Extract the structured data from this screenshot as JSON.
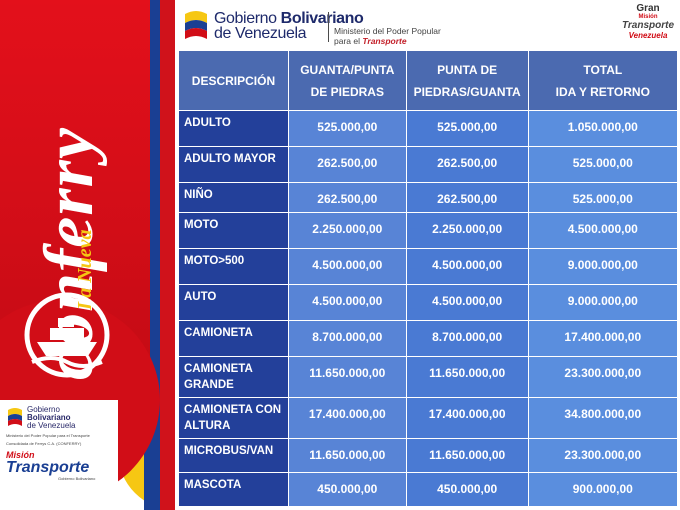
{
  "header": {
    "gov_line1_prefix": "Gobierno ",
    "gov_line1_bold": "Bolivariano",
    "gov_line2": "de Venezuela",
    "ministry_line1": "Ministerio del Poder Popular",
    "ministry_line2_prefix": "para el ",
    "ministry_line2_highlight": "Transporte",
    "gran_line1": "Gran",
    "gran_line2": "Misión",
    "gran_line3": "Transporte",
    "gran_line4": "Venezuela"
  },
  "branding": {
    "la_nueva": "La Nueva",
    "conferry": "conferry"
  },
  "footer": {
    "gov_line1": "Gobierno",
    "gov_line2": "Bolivariano",
    "gov_line3": "de Venezuela",
    "ministry_small": "Ministerio del Poder Popular para el Transporte",
    "consorcio": "Consolidada de Ferrys C.A. (CONFERRY)",
    "mision": "Misión",
    "transporte": "Transporte",
    "small_tag": "Gobierno Bolivariano"
  },
  "table": {
    "headers": {
      "desc": "DESCRIPCIÓN",
      "col1_line1": "GUANTA/PUNTA",
      "col1_line2": "DE PIEDRAS",
      "col2_line1": "PUNTA DE",
      "col2_line2": "PIEDRAS/GUANTA",
      "col3_line1": "TOTAL",
      "col3_line2": "IDA Y RETORNO"
    },
    "rows": [
      {
        "desc": "ADULTO",
        "g": "525.000,00",
        "p": "525.000,00",
        "t": "1.050.000,00"
      },
      {
        "desc": "ADULTO MAYOR",
        "g": "262.500,00",
        "p": "262.500,00",
        "t": "525.000,00"
      },
      {
        "desc": "NIÑO",
        "g": "262.500,00",
        "p": "262.500,00",
        "t": "525.000,00"
      },
      {
        "desc": "MOTO",
        "g": "2.250.000,00",
        "p": "2.250.000,00",
        "t": "4.500.000,00"
      },
      {
        "desc": "MOTO>500",
        "g": "4.500.000,00",
        "p": "4.500.000,00",
        "t": "9.000.000,00"
      },
      {
        "desc": "AUTO",
        "g": "4.500.000,00",
        "p": "4.500.000,00",
        "t": "9.000.000,00"
      },
      {
        "desc": "CAMIONETA",
        "g": "8.700.000,00",
        "p": "8.700.000,00",
        "t": "17.400.000,00"
      },
      {
        "desc": "CAMIONETA GRANDE",
        "g": "11.650.000,00",
        "p": "11.650.000,00",
        "t": "23.300.000,00"
      },
      {
        "desc": "CAMIONETA CON ALTURA",
        "g": "17.400.000,00",
        "p": "17.400.000,00",
        "t": "34.800.000,00"
      },
      {
        "desc": "MICROBUS/VAN",
        "g": "11.650.000,00",
        "p": "11.650.000,00",
        "t": "23.300.000,00"
      },
      {
        "desc": "MASCOTA",
        "g": "450.000,00",
        "p": "450.000,00",
        "t": "900.000,00"
      }
    ]
  },
  "colors": {
    "brand_red": "#d10d17",
    "brand_yellow": "#f6c713",
    "brand_blue": "#1a3f93",
    "header_row": "#4b6ab0",
    "desc_col": "#23409a",
    "value_col": "#5884d6"
  },
  "icons": [
    "venezuela-flag-icon",
    "ferry-ship-logo-icon"
  ]
}
